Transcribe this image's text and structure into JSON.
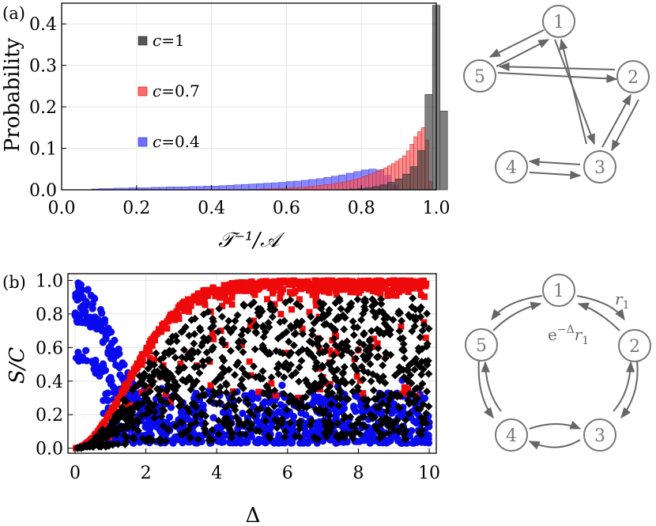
{
  "panel_a": {
    "label": "(a)",
    "ylabel": "Probability",
    "xlabel": "𝒯⁻¹/𝒜",
    "legend_prefix": "c",
    "legend": [
      {
        "name": "c=1",
        "value": "=1",
        "color": "#555555"
      },
      {
        "name": "c=0.7",
        "value": "=0.7",
        "color": "#ff6a6a"
      },
      {
        "name": "c=0.4",
        "value": "=0.4",
        "color": "#6e6eff"
      }
    ]
  },
  "panel_b": {
    "label": "(b)",
    "ylabel": "S/C",
    "xlabel": "Δ"
  },
  "network_top": {
    "nodes": [
      "1",
      "2",
      "3",
      "4",
      "5"
    ]
  },
  "network_bottom": {
    "nodes": [
      "1",
      "2",
      "3",
      "4",
      "5"
    ],
    "rate_forward": "r",
    "rate_forward_sub": "1",
    "rate_back_prefix": "e",
    "rate_back_exp": "−Δ",
    "rate_back": "r",
    "rate_back_sub": "1"
  },
  "chart_data": [
    {
      "type": "bar",
      "xlim": [
        0,
        1
      ],
      "ylim": [
        0,
        0.45
      ],
      "xticks": [
        "0.0",
        "0.2",
        "0.4",
        "0.6",
        "0.8",
        "1.0"
      ],
      "xtick_values": [
        0,
        0.2,
        0.4,
        0.6,
        0.8,
        1.0
      ],
      "yticks": [
        "0.0",
        "0.1",
        "0.2",
        "0.3",
        "0.4"
      ],
      "ytick_values": [
        0,
        0.1,
        0.2,
        0.3,
        0.4
      ],
      "grid": true,
      "legend_position": "upper-left",
      "series": [
        {
          "name": "c=0.4",
          "bin_start": 0.08,
          "bin_width": 0.02,
          "values": [
            0.002,
            0.003,
            0.003,
            0.004,
            0.004,
            0.005,
            0.005,
            0.005,
            0.006,
            0.006,
            0.007,
            0.007,
            0.007,
            0.008,
            0.008,
            0.009,
            0.009,
            0.01,
            0.011,
            0.012,
            0.013,
            0.014,
            0.015,
            0.016,
            0.017,
            0.018,
            0.02,
            0.021,
            0.023,
            0.025,
            0.027,
            0.03,
            0.033,
            0.036,
            0.04,
            0.044,
            0.048,
            0.05,
            0.048,
            0.035,
            0.012,
            0.001
          ]
        },
        {
          "name": "c=0.7",
          "bin_start": 0.5,
          "bin_width": 0.01,
          "values": [
            0.001,
            0.001,
            0.001,
            0.002,
            0.002,
            0.002,
            0.003,
            0.003,
            0.003,
            0.004,
            0.004,
            0.005,
            0.005,
            0.006,
            0.006,
            0.007,
            0.008,
            0.009,
            0.01,
            0.011,
            0.012,
            0.013,
            0.014,
            0.016,
            0.017,
            0.019,
            0.021,
            0.023,
            0.025,
            0.028,
            0.031,
            0.034,
            0.037,
            0.041,
            0.045,
            0.049,
            0.053,
            0.058,
            0.063,
            0.069,
            0.075,
            0.082,
            0.094,
            0.11,
            0.128,
            0.14,
            0.15,
            0.12,
            0.02
          ]
        },
        {
          "name": "c=1",
          "bin_start": 0.75,
          "bin_width": 0.02,
          "values": [
            0.001,
            0.002,
            0.003,
            0.005,
            0.008,
            0.012,
            0.018,
            0.026,
            0.038,
            0.056,
            0.095,
            0.23,
            0.445,
            0.19
          ]
        }
      ]
    },
    {
      "type": "scatter",
      "xlim": [
        -0.2,
        10.2
      ],
      "ylim": [
        -0.03,
        1.04
      ],
      "xticks": [
        "0",
        "2",
        "4",
        "6",
        "8",
        "10"
      ],
      "xtick_values": [
        0,
        2,
        4,
        6,
        8,
        10
      ],
      "yticks": [
        "0.0",
        "0.2",
        "0.4",
        "0.6",
        "0.8",
        "1.0"
      ],
      "ytick_values": [
        0,
        0.2,
        0.4,
        0.6,
        0.8,
        1.0
      ],
      "grid": true,
      "series": [
        {
          "name": "blue",
          "color": "#0a0aee",
          "marker": "circle",
          "seed": 11,
          "count": 900
        },
        {
          "name": "red",
          "color": "#ee0a0a",
          "marker": "square",
          "seed": 23,
          "count": 650
        },
        {
          "name": "black",
          "color": "#000000",
          "marker": "diamond",
          "seed": 37,
          "count": 900
        }
      ]
    }
  ]
}
